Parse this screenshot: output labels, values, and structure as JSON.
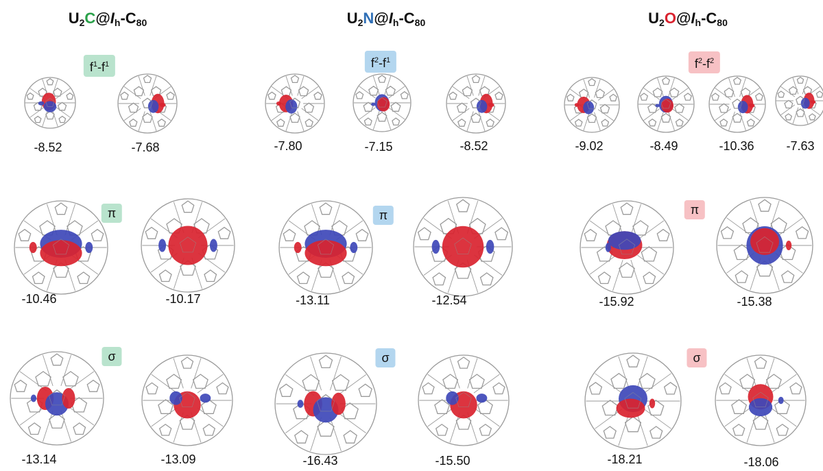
{
  "colors": {
    "green_tag": "#b9e3cd",
    "blue_tag": "#b3d6ef",
    "pink_tag": "#f7c1c4",
    "lobe_red": "#d9232f",
    "lobe_blue": "#3e48b8",
    "atom_green": "#2aa14a",
    "atom_blue": "#2f6fb6",
    "atom_red": "#d9232f",
    "cage_line": "#9a9a9a"
  },
  "columns": [
    {
      "header": {
        "prefix": "U",
        "sub1": "2",
        "atom": "C",
        "at": "@",
        "ih": "I",
        "ih_sub": "h",
        "suffix": "-C",
        "sub2": "80"
      },
      "tag_color": "green_tag",
      "atom_color": "atom_green",
      "rows": [
        {
          "tag": {
            "a": "f",
            "asup": "1",
            "dash": "-",
            "b": "f",
            "bsup": "1"
          },
          "energies": [
            "-8.52",
            "-7.68"
          ]
        },
        {
          "tag": {
            "text": "π"
          },
          "energies": [
            "-10.46",
            "-10.17"
          ]
        },
        {
          "tag": {
            "text": "σ"
          },
          "energies": [
            "-13.14",
            "-13.09"
          ]
        }
      ]
    },
    {
      "header": {
        "prefix": "U",
        "sub1": "2",
        "atom": "N",
        "at": "@",
        "ih": "I",
        "ih_sub": "h",
        "suffix": "-C",
        "sub2": "80"
      },
      "tag_color": "blue_tag",
      "atom_color": "atom_blue",
      "rows": [
        {
          "tag": {
            "a": "f",
            "asup": "2",
            "dash": "-",
            "b": "f",
            "bsup": "1"
          },
          "energies": [
            "-7.80",
            "-7.15",
            "-8.52"
          ]
        },
        {
          "tag": {
            "text": "π"
          },
          "energies": [
            "-13.11",
            "-12.54"
          ]
        },
        {
          "tag": {
            "text": "σ"
          },
          "energies": [
            "-16.43",
            "-15.50"
          ]
        }
      ]
    },
    {
      "header": {
        "prefix": "U",
        "sub1": "2",
        "atom": "O",
        "at": "@",
        "ih": "I",
        "ih_sub": "h",
        "suffix": "-C",
        "sub2": "80"
      },
      "tag_color": "pink_tag",
      "atom_color": "atom_red",
      "rows": [
        {
          "tag": {
            "a": "f",
            "asup": "2",
            "dash": "-",
            "b": "f",
            "bsup": "2"
          },
          "energies": [
            "-9.02",
            "-8.49",
            "-10.36",
            "-7.63"
          ]
        },
        {
          "tag": {
            "text": "π"
          },
          "energies": [
            "-15.92",
            "-15.38"
          ]
        },
        {
          "tag": {
            "text": "σ"
          },
          "energies": [
            "-18.21",
            "-18.06"
          ]
        }
      ]
    }
  ]
}
